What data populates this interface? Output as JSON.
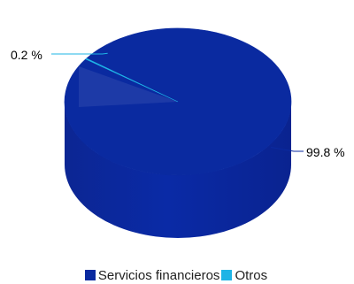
{
  "chart_data": {
    "type": "pie",
    "style": "3d",
    "categories": [
      "Servicios financieros",
      "Otros"
    ],
    "values": [
      99.8,
      0.2
    ],
    "data_labels": [
      "99.8 %",
      "0.2 %"
    ],
    "colors": [
      "#0a2aa0",
      "#1eb4e6"
    ],
    "legend_position": "bottom"
  }
}
